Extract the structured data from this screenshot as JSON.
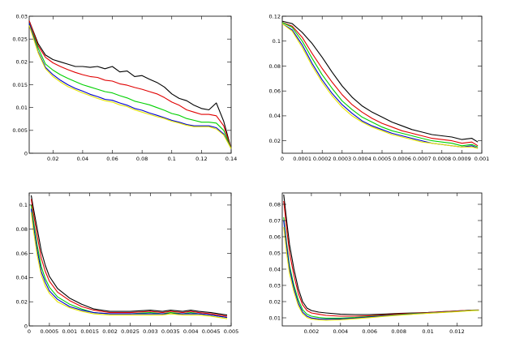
{
  "colors": {
    "black": "#000000",
    "red": "#e00000",
    "green": "#00d000",
    "blue": "#0000d0",
    "yellow": "#e6e600"
  },
  "chart_data": [
    {
      "type": "line",
      "title": "",
      "xlabel": "",
      "ylabel": "",
      "xlim": [
        0.004,
        0.14
      ],
      "ylim": [
        0,
        0.03
      ],
      "xticks": [
        0.02,
        0.04,
        0.06,
        0.08,
        0.1,
        0.12,
        0.14
      ],
      "xtick_labels": [
        "0.02",
        "0.04",
        "0.06",
        "0.08",
        "0.1",
        "0.12",
        "0.14"
      ],
      "yticks": [
        0,
        0.005,
        0.01,
        0.015,
        0.02,
        0.025,
        0.03
      ],
      "ytick_labels": [
        "0",
        "0.005",
        "0.01",
        "0.015",
        "0.02",
        "0.025",
        "0.03"
      ],
      "x": [
        0.004,
        0.01,
        0.015,
        0.02,
        0.025,
        0.03,
        0.035,
        0.04,
        0.045,
        0.05,
        0.055,
        0.06,
        0.065,
        0.07,
        0.075,
        0.08,
        0.085,
        0.09,
        0.095,
        0.1,
        0.105,
        0.11,
        0.115,
        0.12,
        0.125,
        0.13,
        0.135,
        0.14
      ],
      "series": [
        {
          "name": "black",
          "color": "black",
          "values": [
            0.029,
            0.024,
            0.0215,
            0.0205,
            0.02,
            0.0195,
            0.019,
            0.019,
            0.0188,
            0.019,
            0.0185,
            0.019,
            0.0178,
            0.018,
            0.0168,
            0.017,
            0.0162,
            0.0155,
            0.0145,
            0.013,
            0.012,
            0.0115,
            0.0105,
            0.0098,
            0.0095,
            0.011,
            0.007,
            0.001
          ]
        },
        {
          "name": "red",
          "color": "red",
          "values": [
            0.029,
            0.0235,
            0.021,
            0.0198,
            0.019,
            0.0183,
            0.0177,
            0.0172,
            0.0168,
            0.0166,
            0.016,
            0.0158,
            0.0152,
            0.0149,
            0.0144,
            0.014,
            0.0135,
            0.013,
            0.0122,
            0.0112,
            0.0105,
            0.0095,
            0.009,
            0.0085,
            0.0085,
            0.0082,
            0.006,
            0.001
          ]
        },
        {
          "name": "green",
          "color": "green",
          "values": [
            0.0285,
            0.023,
            0.0195,
            0.0182,
            0.0172,
            0.0164,
            0.0157,
            0.015,
            0.0145,
            0.014,
            0.0135,
            0.0132,
            0.0126,
            0.0121,
            0.0114,
            0.011,
            0.0106,
            0.01,
            0.0094,
            0.0087,
            0.0083,
            0.0076,
            0.0072,
            0.0068,
            0.0068,
            0.0066,
            0.005,
            0.001
          ]
        },
        {
          "name": "blue",
          "color": "blue",
          "values": [
            0.0285,
            0.0222,
            0.0188,
            0.0172,
            0.016,
            0.015,
            0.0142,
            0.0136,
            0.0129,
            0.0124,
            0.0118,
            0.0116,
            0.011,
            0.0105,
            0.0098,
            0.0094,
            0.0088,
            0.0083,
            0.0078,
            0.0072,
            0.0068,
            0.0063,
            0.006,
            0.006,
            0.006,
            0.0056,
            0.0042,
            0.001
          ]
        },
        {
          "name": "yellow",
          "color": "yellow",
          "values": [
            0.028,
            0.022,
            0.0185,
            0.0168,
            0.0156,
            0.0146,
            0.0139,
            0.0132,
            0.0126,
            0.012,
            0.0115,
            0.0112,
            0.0106,
            0.0102,
            0.0095,
            0.009,
            0.0085,
            0.008,
            0.0076,
            0.007,
            0.0066,
            0.0061,
            0.0058,
            0.0058,
            0.0058,
            0.0053,
            0.004,
            0.001
          ]
        }
      ]
    },
    {
      "type": "line",
      "title": "",
      "xlabel": "",
      "ylabel": "",
      "xlim": [
        0,
        0.001
      ],
      "ylim": [
        0.01,
        0.12
      ],
      "xticks": [
        0,
        0.0001,
        0.0002,
        0.0003,
        0.0004,
        0.0005,
        0.0006,
        0.0007,
        0.0008,
        0.0009,
        0.001
      ],
      "xtick_labels": [
        "0",
        "0.0001",
        "0.0002",
        "0.0003",
        "0.0004",
        "0.0005",
        "0.0006",
        "0.0007",
        "0.0008",
        "0.0009",
        "0.001"
      ],
      "yticks": [
        0.02,
        0.04,
        0.06,
        0.08,
        0.1,
        0.12
      ],
      "ytick_labels": [
        "0.02",
        "0.04",
        "0.06",
        "0.08",
        "0.1",
        "0.12"
      ],
      "x": [
        0,
        5e-05,
        0.0001,
        0.00015,
        0.0002,
        0.00025,
        0.0003,
        0.00035,
        0.0004,
        0.00045,
        0.0005,
        0.00055,
        0.0006,
        0.00065,
        0.0007,
        0.00075,
        0.0008,
        0.00085,
        0.0009,
        0.00095,
        0.00098
      ],
      "series": [
        {
          "name": "black",
          "color": "black",
          "values": [
            0.116,
            0.114,
            0.107,
            0.098,
            0.087,
            0.075,
            0.064,
            0.055,
            0.048,
            0.043,
            0.039,
            0.035,
            0.032,
            0.029,
            0.027,
            0.025,
            0.024,
            0.023,
            0.021,
            0.022,
            0.019
          ]
        },
        {
          "name": "red",
          "color": "red",
          "values": [
            0.115,
            0.112,
            0.103,
            0.09,
            0.078,
            0.067,
            0.057,
            0.049,
            0.043,
            0.038,
            0.034,
            0.031,
            0.028,
            0.026,
            0.024,
            0.022,
            0.021,
            0.02,
            0.018,
            0.019,
            0.016
          ]
        },
        {
          "name": "green",
          "color": "green",
          "values": [
            0.115,
            0.111,
            0.1,
            0.086,
            0.073,
            0.062,
            0.052,
            0.045,
            0.039,
            0.035,
            0.031,
            0.028,
            0.026,
            0.024,
            0.022,
            0.02,
            0.019,
            0.018,
            0.016,
            0.017,
            0.015
          ]
        },
        {
          "name": "blue",
          "color": "blue",
          "values": [
            0.114,
            0.109,
            0.097,
            0.082,
            0.069,
            0.058,
            0.049,
            0.042,
            0.036,
            0.032,
            0.029,
            0.026,
            0.024,
            0.022,
            0.02,
            0.018,
            0.017,
            0.016,
            0.015,
            0.016,
            0.014
          ]
        },
        {
          "name": "yellow",
          "color": "yellow",
          "values": [
            0.114,
            0.108,
            0.095,
            0.08,
            0.067,
            0.056,
            0.047,
            0.04,
            0.035,
            0.031,
            0.028,
            0.025,
            0.023,
            0.021,
            0.019,
            0.018,
            0.017,
            0.016,
            0.015,
            0.015,
            0.014
          ]
        }
      ]
    },
    {
      "type": "line",
      "title": "",
      "xlabel": "",
      "ylabel": "",
      "xlim": [
        0,
        0.005
      ],
      "ylim": [
        0,
        0.11
      ],
      "xticks": [
        0,
        0.0005,
        0.001,
        0.0015,
        0.002,
        0.0025,
        0.003,
        0.0035,
        0.004,
        0.0045,
        0.005
      ],
      "xtick_labels": [
        "0",
        "0.0005",
        "0.001",
        "0.0015",
        "0.002",
        "0.0025",
        "0.003",
        "0.0035",
        "0.004",
        "0.0045",
        "0.005"
      ],
      "yticks": [
        0,
        0.02,
        0.04,
        0.06,
        0.08,
        0.1
      ],
      "ytick_labels": [
        "0",
        "0.02",
        "0.04",
        "0.06",
        "0.08",
        "0.1"
      ],
      "x": [
        5e-05,
        0.0001,
        0.0002,
        0.0003,
        0.0004,
        0.0005,
        0.0007,
        0.001,
        0.0013,
        0.0016,
        0.002,
        0.0025,
        0.003,
        0.0033,
        0.0035,
        0.0038,
        0.004,
        0.0042,
        0.0045,
        0.0049
      ],
      "series": [
        {
          "name": "black",
          "color": "black",
          "values": [
            0.108,
            0.098,
            0.08,
            0.062,
            0.05,
            0.041,
            0.031,
            0.023,
            0.018,
            0.014,
            0.012,
            0.012,
            0.013,
            0.012,
            0.013,
            0.012,
            0.013,
            0.012,
            0.011,
            0.009
          ]
        },
        {
          "name": "red",
          "color": "red",
          "values": [
            0.105,
            0.094,
            0.074,
            0.056,
            0.045,
            0.037,
            0.028,
            0.021,
            0.016,
            0.013,
            0.011,
            0.011,
            0.012,
            0.011,
            0.012,
            0.011,
            0.012,
            0.011,
            0.01,
            0.008
          ]
        },
        {
          "name": "green",
          "color": "green",
          "values": [
            0.1,
            0.088,
            0.066,
            0.049,
            0.039,
            0.032,
            0.024,
            0.018,
            0.014,
            0.011,
            0.01,
            0.01,
            0.011,
            0.01,
            0.011,
            0.01,
            0.011,
            0.01,
            0.009,
            0.007
          ]
        },
        {
          "name": "blue",
          "color": "blue",
          "values": [
            0.097,
            0.084,
            0.062,
            0.045,
            0.036,
            0.029,
            0.022,
            0.016,
            0.013,
            0.011,
            0.01,
            0.01,
            0.01,
            0.01,
            0.01,
            0.01,
            0.01,
            0.01,
            0.009,
            0.007
          ]
        },
        {
          "name": "yellow",
          "color": "yellow",
          "values": [
            0.094,
            0.08,
            0.058,
            0.042,
            0.033,
            0.027,
            0.02,
            0.015,
            0.012,
            0.01,
            0.009,
            0.009,
            0.009,
            0.009,
            0.01,
            0.009,
            0.009,
            0.009,
            0.008,
            0.006
          ]
        }
      ]
    },
    {
      "type": "line",
      "title": "",
      "xlabel": "",
      "ylabel": "",
      "xlim": [
        0,
        0.0137
      ],
      "ylim": [
        0.005,
        0.087
      ],
      "xticks": [
        0.002,
        0.004,
        0.006,
        0.008,
        0.01,
        0.012
      ],
      "xtick_labels": [
        "0.002",
        "0.004",
        "0.006",
        "0.008",
        "0.01",
        "0.012"
      ],
      "yticks": [
        0.01,
        0.02,
        0.03,
        0.04,
        0.05,
        0.06,
        0.07,
        0.08
      ],
      "ytick_labels": [
        "0.01",
        "0.02",
        "0.03",
        "0.04",
        "0.05",
        "0.06",
        "0.07",
        "0.08"
      ],
      "x": [
        0.0001,
        0.0003,
        0.0005,
        0.0008,
        0.0011,
        0.0014,
        0.0017,
        0.002,
        0.0025,
        0.003,
        0.004,
        0.005,
        0.006,
        0.007,
        0.008,
        0.009,
        0.01,
        0.011,
        0.012,
        0.013,
        0.0135
      ],
      "series": [
        {
          "name": "black",
          "color": "black",
          "values": [
            0.086,
            0.07,
            0.055,
            0.04,
            0.028,
            0.02,
            0.016,
            0.0145,
            0.0135,
            0.013,
            0.0122,
            0.012,
            0.012,
            0.0123,
            0.0127,
            0.013,
            0.0133,
            0.0138,
            0.0142,
            0.0147,
            0.0148
          ]
        },
        {
          "name": "red",
          "color": "red",
          "values": [
            0.082,
            0.065,
            0.05,
            0.036,
            0.025,
            0.018,
            0.0145,
            0.013,
            0.0122,
            0.0115,
            0.011,
            0.011,
            0.0113,
            0.0118,
            0.0124,
            0.0128,
            0.0132,
            0.0137,
            0.0142,
            0.0147,
            0.0148
          ]
        },
        {
          "name": "green",
          "color": "green",
          "values": [
            0.072,
            0.056,
            0.042,
            0.03,
            0.021,
            0.015,
            0.0122,
            0.011,
            0.0102,
            0.0098,
            0.0098,
            0.0102,
            0.0108,
            0.0114,
            0.012,
            0.0126,
            0.013,
            0.0135,
            0.014,
            0.0146,
            0.0147
          ]
        },
        {
          "name": "blue",
          "color": "blue",
          "values": [
            0.07,
            0.054,
            0.04,
            0.028,
            0.019,
            0.0135,
            0.011,
            0.0099,
            0.0093,
            0.0091,
            0.0093,
            0.0098,
            0.0105,
            0.0112,
            0.0118,
            0.0124,
            0.0129,
            0.0134,
            0.0139,
            0.0145,
            0.0147
          ]
        },
        {
          "name": "yellow",
          "color": "yellow",
          "values": [
            0.066,
            0.05,
            0.037,
            0.026,
            0.0175,
            0.0125,
            0.0102,
            0.0092,
            0.0087,
            0.0085,
            0.0088,
            0.0094,
            0.0101,
            0.0109,
            0.0116,
            0.0122,
            0.0128,
            0.0133,
            0.0138,
            0.0144,
            0.0146
          ]
        }
      ]
    }
  ]
}
